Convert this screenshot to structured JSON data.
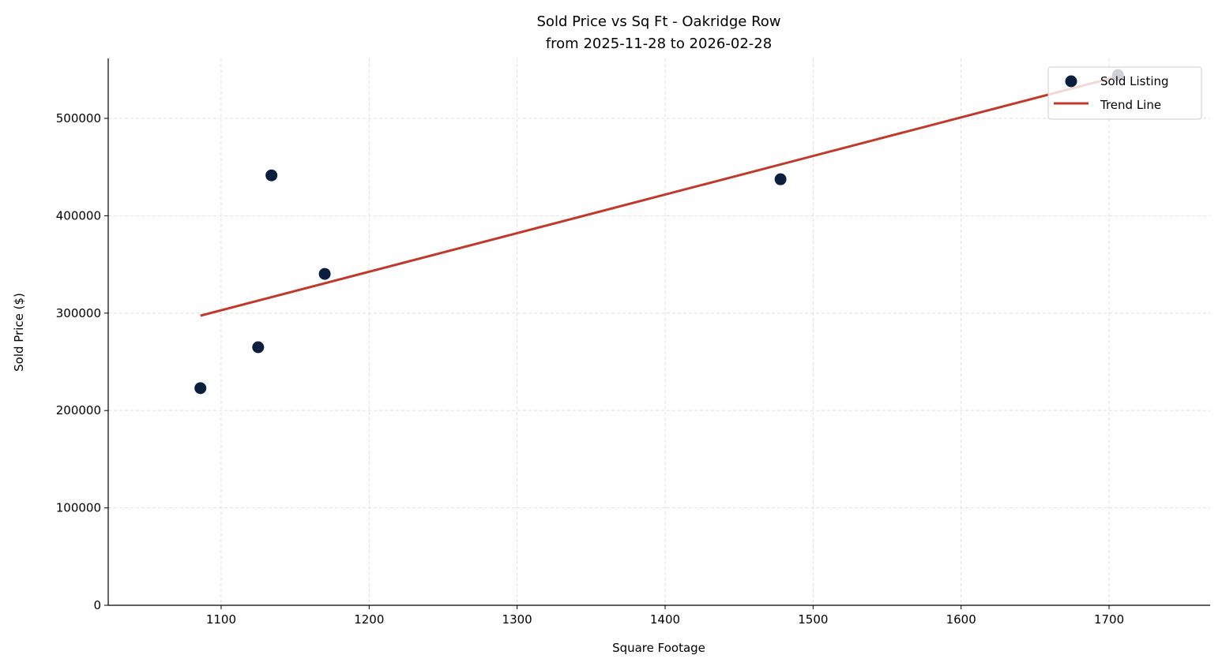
{
  "chart_data": {
    "type": "scatter",
    "title": "Sold Price vs Sq Ft - Oakridge Row",
    "subtitle": "from 2025-11-28 to 2026-02-28",
    "xlabel": "Square Footage",
    "ylabel": "Sold Price ($)",
    "xlim": [
      1023.7,
      1768.3
    ],
    "ylim": [
      0,
      561600
    ],
    "xticks": [
      1100,
      1200,
      1300,
      1400,
      1500,
      1600,
      1700
    ],
    "yticks": [
      0,
      100000,
      200000,
      300000,
      400000,
      500000
    ],
    "grid": true,
    "legend_placement": "top-right",
    "series": [
      {
        "name": "Sold Listing",
        "kind": "scatter",
        "color": "#0a1f3d",
        "x": [
          1086,
          1125,
          1134,
          1170,
          1478,
          1706
        ],
        "y": [
          223000,
          265000,
          441500,
          340300,
          437500,
          544500
        ]
      },
      {
        "name": "Trend Line",
        "kind": "line",
        "color": "#c0392b",
        "x": [
          1086,
          1706
        ],
        "y": [
          297400,
          543000
        ]
      }
    ]
  }
}
